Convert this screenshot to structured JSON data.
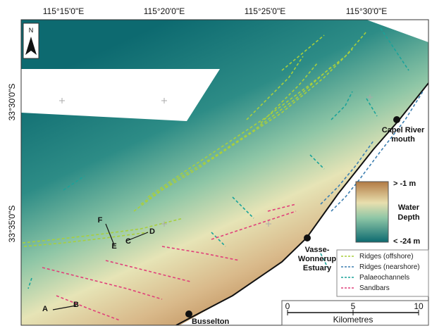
{
  "north": "N",
  "axes": {
    "top": [
      "115°15'0\"E",
      "115°20'0\"E",
      "115°25'0\"E",
      "115°30'0\"E"
    ],
    "left": [
      "33°30'0\"S",
      "33°35'0\"S"
    ]
  },
  "places": {
    "capel": [
      "Capel River",
      "mouth"
    ],
    "vasse": [
      "Vasse-",
      "Wonnerup",
      "Estuary"
    ],
    "busselton": "Busselton"
  },
  "profiles": {
    "A": "A",
    "B": "B",
    "C": "C",
    "D": "D",
    "E": "E",
    "F": "F"
  },
  "depth_scale": {
    "max": "> -1 m",
    "title": [
      "Water",
      "Depth"
    ],
    "min": "< -24 m"
  },
  "legend": [
    {
      "label": "Ridges (offshore)",
      "color": "#a8cf3c"
    },
    {
      "label": "Ridges (nearshore)",
      "color": "#3d7fb0"
    },
    {
      "label": "Palaeochannels",
      "color": "#1aa39a"
    },
    {
      "label": "Sandbars",
      "color": "#e0407a"
    }
  ],
  "scale_bar": {
    "ticks": [
      0,
      5,
      10
    ],
    "unit": "Kilometres"
  }
}
